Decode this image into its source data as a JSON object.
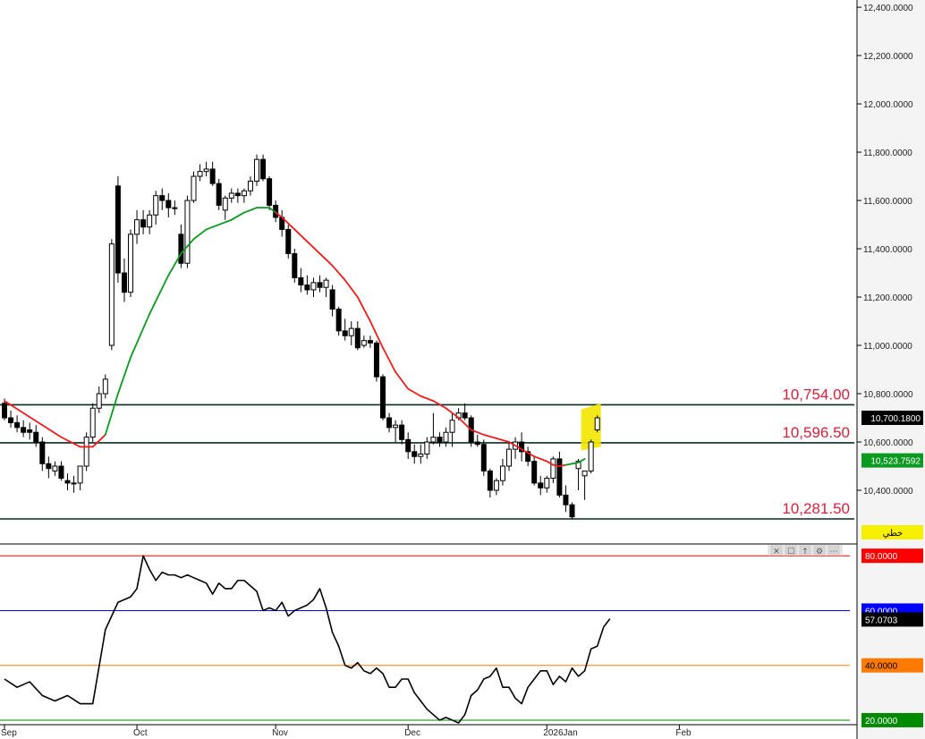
{
  "chart_data": {
    "type": "candlestick",
    "x_labels": [
      {
        "label": "Sep",
        "index": 0
      },
      {
        "label": "Oct",
        "index": 21
      },
      {
        "label": "Nov",
        "index": 43
      },
      {
        "label": "Dec",
        "index": 64
      },
      {
        "label": "2026Jan",
        "index": 86
      },
      {
        "label": "Feb",
        "index": 107
      }
    ],
    "price_axis": {
      "ylim": [
        10200,
        12430
      ],
      "ticks": [
        "12,400.0000",
        "12,200.0000",
        "12,000.0000",
        "11,800.0000",
        "11,600.0000",
        "11,400.0000",
        "11,200.0000",
        "11,000.0000",
        "10,800.0000",
        "10,600.0000",
        "10,400.0000"
      ],
      "tick_values": [
        12400,
        12200,
        12000,
        11800,
        11600,
        11400,
        11200,
        11000,
        10800,
        10600,
        10400
      ]
    },
    "levels": [
      {
        "label": "10,754.00",
        "value": 10754
      },
      {
        "label": "10,596.50",
        "value": 10596.5
      },
      {
        "label": "10,281.50",
        "value": 10281.5
      }
    ],
    "last_price": {
      "label": "10,700.1800",
      "value": 10700.18
    },
    "ma_value": {
      "label": "10,523.7592",
      "value": 10523.7592
    },
    "line_tag": "خطي",
    "ohlc": [
      [
        10760,
        10780,
        10690,
        10700
      ],
      [
        10700,
        10730,
        10660,
        10680
      ],
      [
        10680,
        10710,
        10640,
        10660
      ],
      [
        10660,
        10690,
        10620,
        10640
      ],
      [
        10650,
        10680,
        10610,
        10640
      ],
      [
        10640,
        10670,
        10580,
        10600
      ],
      [
        10600,
        10620,
        10480,
        10510
      ],
      [
        10510,
        10540,
        10450,
        10490
      ],
      [
        10480,
        10520,
        10460,
        10500
      ],
      [
        10500,
        10520,
        10440,
        10450
      ],
      [
        10440,
        10470,
        10400,
        10430
      ],
      [
        10430,
        10460,
        10390,
        10430
      ],
      [
        10430,
        10500,
        10400,
        10500
      ],
      [
        10500,
        10640,
        10480,
        10620
      ],
      [
        10620,
        10760,
        10600,
        10740
      ],
      [
        10740,
        10830,
        10720,
        10800
      ],
      [
        10800,
        10880,
        10780,
        10860
      ],
      [
        11000,
        11440,
        10980,
        11420
      ],
      [
        11660,
        11700,
        11260,
        11300
      ],
      [
        11300,
        11360,
        11180,
        11220
      ],
      [
        11220,
        11480,
        11200,
        11460
      ],
      [
        11460,
        11560,
        11420,
        11520
      ],
      [
        11520,
        11560,
        11460,
        11490
      ],
      [
        11490,
        11560,
        11460,
        11540
      ],
      [
        11540,
        11640,
        11500,
        11620
      ],
      [
        11620,
        11650,
        11560,
        11600
      ],
      [
        11600,
        11630,
        11530,
        11570
      ],
      [
        11570,
        11600,
        11540,
        11570
      ],
      [
        11460,
        11500,
        11320,
        11340
      ],
      [
        11340,
        11620,
        11320,
        11600
      ],
      [
        11600,
        11720,
        11590,
        11700
      ],
      [
        11700,
        11750,
        11680,
        11720
      ],
      [
        11720,
        11760,
        11700,
        11730
      ],
      [
        11730,
        11760,
        11660,
        11670
      ],
      [
        11670,
        11690,
        11560,
        11580
      ],
      [
        11560,
        11620,
        11520,
        11610
      ],
      [
        11610,
        11650,
        11590,
        11630
      ],
      [
        11630,
        11650,
        11590,
        11620
      ],
      [
        11620,
        11650,
        11590,
        11640
      ],
      [
        11640,
        11700,
        11620,
        11680
      ],
      [
        11680,
        11790,
        11660,
        11770
      ],
      [
        11770,
        11790,
        11680,
        11690
      ],
      [
        11690,
        11700,
        11560,
        11580
      ],
      [
        11580,
        11600,
        11510,
        11530
      ],
      [
        11530,
        11560,
        11450,
        11480
      ],
      [
        11480,
        11500,
        11360,
        11380
      ],
      [
        11380,
        11400,
        11260,
        11280
      ],
      [
        11280,
        11320,
        11220,
        11250
      ],
      [
        11250,
        11290,
        11210,
        11230
      ],
      [
        11230,
        11280,
        11200,
        11260
      ],
      [
        11260,
        11290,
        11220,
        11240
      ],
      [
        11240,
        11280,
        11200,
        11270
      ],
      [
        11230,
        11250,
        11120,
        11150
      ],
      [
        11150,
        11160,
        11040,
        11060
      ],
      [
        11060,
        11110,
        11020,
        11040
      ],
      [
        11040,
        11100,
        11000,
        11070
      ],
      [
        11070,
        11100,
        10980,
        10990
      ],
      [
        11000,
        11040,
        10990,
        11020
      ],
      [
        11020,
        11040,
        10990,
        11010
      ],
      [
        11010,
        11020,
        10850,
        10870
      ],
      [
        10870,
        10880,
        10690,
        10700
      ],
      [
        10700,
        10720,
        10640,
        10660
      ],
      [
        10660,
        10690,
        10600,
        10670
      ],
      [
        10670,
        10690,
        10590,
        10610
      ],
      [
        10610,
        10640,
        10530,
        10560
      ],
      [
        10560,
        10590,
        10510,
        10540
      ],
      [
        10540,
        10590,
        10510,
        10550
      ],
      [
        10550,
        10620,
        10530,
        10600
      ],
      [
        10600,
        10720,
        10590,
        10620
      ],
      [
        10620,
        10640,
        10580,
        10600
      ],
      [
        10600,
        10660,
        10580,
        10640
      ],
      [
        10640,
        10720,
        10580,
        10690
      ],
      [
        10700,
        10740,
        10690,
        10720
      ],
      [
        10720,
        10760,
        10690,
        10700
      ],
      [
        10700,
        10710,
        10580,
        10600
      ],
      [
        10600,
        10630,
        10580,
        10590
      ],
      [
        10590,
        10610,
        10460,
        10480
      ],
      [
        10480,
        10490,
        10370,
        10400
      ],
      [
        10400,
        10450,
        10380,
        10440
      ],
      [
        10440,
        10530,
        10420,
        10500
      ],
      [
        10500,
        10600,
        10480,
        10570
      ],
      [
        10570,
        10620,
        10530,
        10600
      ],
      [
        10600,
        10640,
        10520,
        10560
      ],
      [
        10560,
        10580,
        10500,
        10520
      ],
      [
        10520,
        10540,
        10420,
        10430
      ],
      [
        10430,
        10460,
        10380,
        10410
      ],
      [
        10410,
        10460,
        10390,
        10450
      ],
      [
        10450,
        10540,
        10430,
        10530
      ],
      [
        10530,
        10560,
        10370,
        10380
      ],
      [
        10380,
        10420,
        10310,
        10340
      ],
      [
        10340,
        10350,
        10280,
        10290
      ],
      [
        10490,
        10530,
        10400,
        10520
      ],
      [
        10460,
        10480,
        10360,
        10480
      ],
      [
        10480,
        10610,
        10470,
        10600
      ],
      [
        10650,
        10710,
        10640,
        10700
      ]
    ],
    "ma": [
      [
        0,
        10770
      ],
      [
        3,
        10720
      ],
      [
        6,
        10670
      ],
      [
        9,
        10620
      ],
      [
        12,
        10580
      ],
      [
        14,
        10580
      ],
      [
        16,
        10630
      ],
      [
        18,
        10800
      ],
      [
        20,
        10950
      ],
      [
        23,
        11130
      ],
      [
        26,
        11290
      ],
      [
        28,
        11380
      ],
      [
        30,
        11440
      ],
      [
        32,
        11480
      ],
      [
        34,
        11500
      ],
      [
        36,
        11520
      ],
      [
        38,
        11550
      ],
      [
        40,
        11570
      ],
      [
        42,
        11570
      ],
      [
        43,
        11550
      ],
      [
        44,
        11530
      ],
      [
        46,
        11480
      ],
      [
        48,
        11430
      ],
      [
        50,
        11380
      ],
      [
        52,
        11330
      ],
      [
        54,
        11270
      ],
      [
        56,
        11200
      ],
      [
        58,
        11100
      ],
      [
        60,
        10990
      ],
      [
        62,
        10890
      ],
      [
        64,
        10820
      ],
      [
        66,
        10790
      ],
      [
        68,
        10770
      ],
      [
        70,
        10740
      ],
      [
        72,
        10700
      ],
      [
        74,
        10650
      ],
      [
        76,
        10630
      ],
      [
        78,
        10615
      ],
      [
        80,
        10600
      ],
      [
        82,
        10570
      ],
      [
        84,
        10540
      ],
      [
        86,
        10520
      ],
      [
        87,
        10505
      ],
      [
        88,
        10500
      ],
      [
        89,
        10505
      ],
      [
        90,
        10510
      ],
      [
        91,
        10515
      ],
      [
        92,
        10530
      ]
    ],
    "ma_green_from": 92,
    "oscillator": {
      "ylim": [
        19,
        83
      ],
      "levels": [
        {
          "label": "80.0000",
          "value": 80,
          "color": "#ff0000"
        },
        {
          "label": "60.0000",
          "value": 60,
          "color": "#0000ff"
        },
        {
          "label": "40.0000",
          "value": 40,
          "color": "#ff7a00"
        },
        {
          "label": "20.0000",
          "value": 20,
          "color": "#008a00"
        }
      ],
      "last": {
        "label": "57.0703",
        "value": 57.07
      },
      "values": [
        [
          0,
          35
        ],
        [
          2,
          32
        ],
        [
          4,
          34
        ],
        [
          6,
          29
        ],
        [
          8,
          27
        ],
        [
          10,
          29
        ],
        [
          12,
          26
        ],
        [
          14,
          26
        ],
        [
          16,
          53
        ],
        [
          18,
          63
        ],
        [
          20,
          65
        ],
        [
          21,
          68
        ],
        [
          22,
          80
        ],
        [
          23,
          75
        ],
        [
          24,
          71
        ],
        [
          25,
          74
        ],
        [
          26,
          73
        ],
        [
          27,
          73
        ],
        [
          28,
          72
        ],
        [
          29,
          73
        ],
        [
          30,
          72
        ],
        [
          31,
          71
        ],
        [
          32,
          70
        ],
        [
          33,
          66
        ],
        [
          34,
          70
        ],
        [
          35,
          68
        ],
        [
          36,
          68
        ],
        [
          37,
          71
        ],
        [
          38,
          71
        ],
        [
          39,
          69
        ],
        [
          40,
          67
        ],
        [
          41,
          60
        ],
        [
          42,
          61
        ],
        [
          43,
          60
        ],
        [
          44,
          63
        ],
        [
          45,
          58
        ],
        [
          46,
          60
        ],
        [
          47,
          61
        ],
        [
          48,
          62
        ],
        [
          49,
          64
        ],
        [
          50,
          68
        ],
        [
          51,
          61
        ],
        [
          52,
          52
        ],
        [
          53,
          47
        ],
        [
          54,
          40
        ],
        [
          55,
          39
        ],
        [
          56,
          41
        ],
        [
          57,
          38
        ],
        [
          58,
          37
        ],
        [
          59,
          39
        ],
        [
          60,
          37
        ],
        [
          61,
          32
        ],
        [
          62,
          32
        ],
        [
          63,
          35
        ],
        [
          64,
          35
        ],
        [
          65,
          30
        ],
        [
          66,
          27
        ],
        [
          67,
          24
        ],
        [
          68,
          22
        ],
        [
          69,
          20
        ],
        [
          70,
          21
        ],
        [
          71,
          20
        ],
        [
          72,
          19
        ],
        [
          73,
          22
        ],
        [
          74,
          29
        ],
        [
          75,
          31
        ],
        [
          76,
          35
        ],
        [
          77,
          36
        ],
        [
          78,
          39
        ],
        [
          79,
          32
        ],
        [
          80,
          32
        ],
        [
          81,
          28
        ],
        [
          82,
          26
        ],
        [
          83,
          32
        ],
        [
          84,
          35
        ],
        [
          85,
          38
        ],
        [
          86,
          38
        ],
        [
          87,
          33
        ],
        [
          88,
          36
        ],
        [
          89,
          34
        ],
        [
          90,
          39
        ],
        [
          91,
          36
        ],
        [
          92,
          38
        ],
        [
          93,
          46
        ],
        [
          94,
          47
        ],
        [
          95,
          54
        ],
        [
          96,
          57
        ]
      ]
    }
  }
}
